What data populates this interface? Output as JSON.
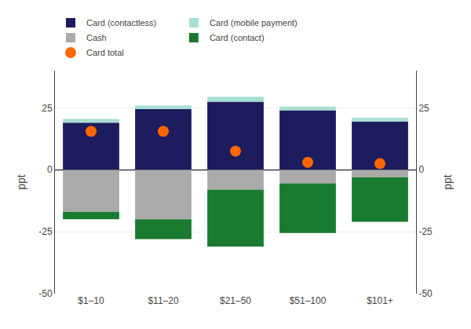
{
  "chart_data": {
    "type": "bar",
    "stacked": true,
    "categories": [
      "$1–10",
      "$11–20",
      "$21–50",
      "$51–100",
      "$101+"
    ],
    "series": [
      {
        "name": "Card (contactless)",
        "type": "bar",
        "color": "#1c1c5e",
        "values": [
          19.0,
          24.5,
          27.5,
          24.0,
          19.5
        ]
      },
      {
        "name": "Card (mobile payment)",
        "type": "bar",
        "color": "#a8dfd4",
        "values": [
          1.5,
          1.5,
          2.0,
          1.5,
          1.5
        ]
      },
      {
        "name": "Cash",
        "type": "bar",
        "color": "#aaaaaa",
        "values": [
          -17.0,
          -20.0,
          -8.0,
          -5.5,
          -3.0
        ]
      },
      {
        "name": "Card (contact)",
        "type": "bar",
        "color": "#1a7a30",
        "values": [
          -3.0,
          -8.0,
          -23.0,
          -20.0,
          -18.0
        ]
      },
      {
        "name": "Card total",
        "type": "scatter",
        "marker": "circle",
        "color": "#ff6600",
        "values": [
          15.5,
          15.5,
          7.5,
          3.0,
          2.5
        ]
      }
    ],
    "ylabel": "ppt",
    "y2label": "ppt",
    "ylim": [
      -50,
      40
    ],
    "yticks": [
      -50,
      -25,
      0,
      25
    ],
    "y2lim": [
      -50,
      40
    ],
    "y2ticks": [
      -50,
      -25,
      0,
      25
    ],
    "grid": true,
    "legend": "upper left"
  }
}
